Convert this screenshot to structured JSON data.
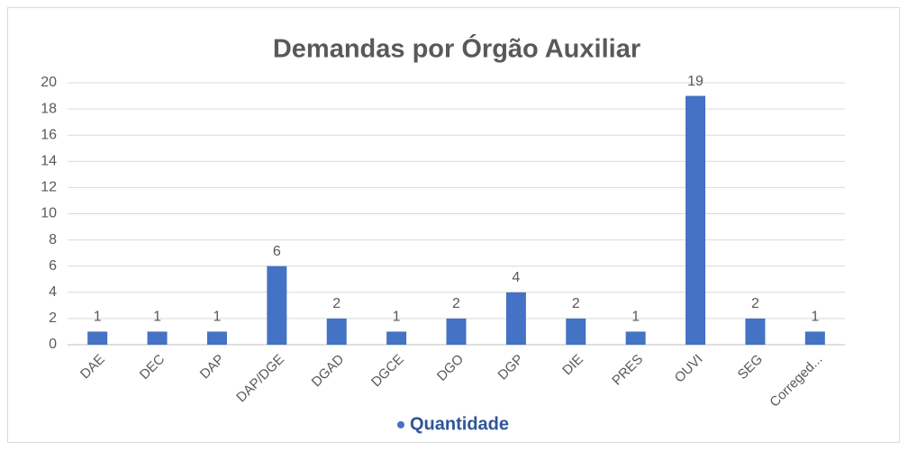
{
  "chart_data": {
    "type": "bar",
    "title": "Demandas por Órgão Auxiliar",
    "categories": [
      "DAE",
      "DEC",
      "DAP",
      "DAP/DGE",
      "DGAD",
      "DGCE",
      "DGO",
      "DGP",
      "DIE",
      "PRES",
      "OUVI",
      "SEG",
      "Correged..."
    ],
    "series": [
      {
        "name": "Quantidade",
        "color": "#4472c4",
        "values": [
          1,
          1,
          1,
          6,
          2,
          1,
          2,
          4,
          2,
          1,
          19,
          2,
          1
        ]
      }
    ],
    "ylim": [
      0,
      20
    ],
    "yticks": [
      0,
      2,
      4,
      6,
      8,
      10,
      12,
      14,
      16,
      18,
      20
    ],
    "grid": true,
    "data_labels": true,
    "legend": "bottom"
  }
}
